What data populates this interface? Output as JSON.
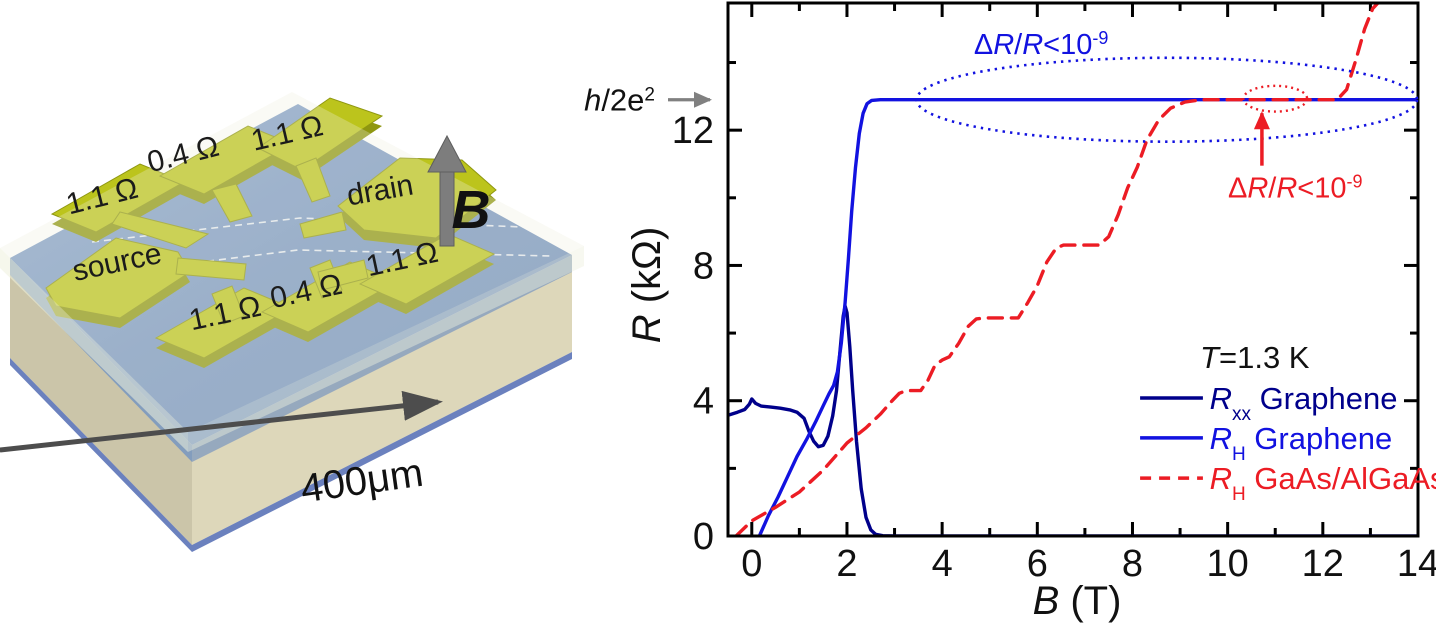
{
  "device": {
    "labels": {
      "contact_top_left": "1.1 Ω",
      "contact_top_mid": "0.4 Ω",
      "contact_top_right": "1.1 Ω",
      "drain": "drain",
      "source": "source",
      "contact_bottom_left": "1.1 Ω",
      "contact_bottom_mid": "0.4 Ω",
      "contact_right": "1.1 Ω",
      "field": "B",
      "scale": "400μm"
    },
    "colors": {
      "contact": "#bcc41c",
      "contact_side": "#8f9710",
      "chip_blue": "#7795c1",
      "substrate_front": "#ddd7ba",
      "substrate_left": "#cbc5a9",
      "glass": "#eef0dd",
      "bottom_line_blue": "#3a57a8",
      "field_arrow_gray": "#7d7d7d",
      "scale_arrow_gray": "#4d4d4d"
    }
  },
  "chart_data": {
    "type": "line",
    "xlabel_rich": [
      [
        "B",
        "i"
      ],
      [
        " (T)",
        ""
      ]
    ],
    "ylabel_rich": [
      [
        "R",
        "i"
      ],
      [
        " (kΩ)",
        ""
      ]
    ],
    "xlim": [
      -0.5,
      14
    ],
    "ylim": [
      0,
      15.76
    ],
    "x_major_ticks": [
      0,
      2,
      4,
      6,
      8,
      10,
      12,
      14
    ],
    "x_minor_ticks": [
      1,
      3,
      5,
      7,
      9,
      11,
      13
    ],
    "y_major_ticks": [
      0,
      4,
      8,
      12
    ],
    "y_minor_ticks": [
      2,
      6,
      10,
      14
    ],
    "axis_color": "#000000",
    "series": [
      {
        "id": "rxx-graphene",
        "legend_rich": [
          [
            "R",
            "i"
          ],
          [
            "xx",
            "sub"
          ],
          [
            " Graphene",
            ""
          ]
        ],
        "color": "#00008b",
        "dash": null,
        "points": [
          [
            -0.5,
            3.57
          ],
          [
            -0.3,
            3.66
          ],
          [
            -0.15,
            3.74
          ],
          [
            -0.05,
            3.9
          ],
          [
            0.0,
            4.05
          ],
          [
            0.08,
            3.92
          ],
          [
            0.2,
            3.84
          ],
          [
            0.4,
            3.81
          ],
          [
            0.6,
            3.78
          ],
          [
            0.8,
            3.73
          ],
          [
            0.95,
            3.66
          ],
          [
            1.1,
            3.48
          ],
          [
            1.2,
            3.1
          ],
          [
            1.3,
            2.8
          ],
          [
            1.4,
            2.64
          ],
          [
            1.5,
            2.68
          ],
          [
            1.6,
            2.95
          ],
          [
            1.7,
            3.55
          ],
          [
            1.78,
            4.3
          ],
          [
            1.85,
            5.4
          ],
          [
            1.92,
            6.5
          ],
          [
            1.96,
            6.8
          ],
          [
            2.0,
            6.6
          ],
          [
            2.06,
            5.6
          ],
          [
            2.12,
            4.3
          ],
          [
            2.2,
            2.8
          ],
          [
            2.3,
            1.4
          ],
          [
            2.4,
            0.55
          ],
          [
            2.5,
            0.18
          ],
          [
            2.6,
            0.05
          ],
          [
            2.75,
            0.01
          ],
          [
            3.0,
            0
          ],
          [
            14,
            0
          ]
        ]
      },
      {
        "id": "rh-graphene",
        "legend_rich": [
          [
            "R",
            "i"
          ],
          [
            "H",
            "sub"
          ],
          [
            " Graphene",
            ""
          ]
        ],
        "color": "#1212e0",
        "dash": null,
        "points": [
          [
            0.16,
            0
          ],
          [
            0.35,
            0.6
          ],
          [
            0.55,
            1.15
          ],
          [
            0.75,
            1.75
          ],
          [
            0.95,
            2.35
          ],
          [
            1.15,
            2.85
          ],
          [
            1.35,
            3.4
          ],
          [
            1.5,
            3.85
          ],
          [
            1.62,
            4.2
          ],
          [
            1.72,
            4.45
          ],
          [
            1.8,
            4.85
          ],
          [
            1.88,
            5.7
          ],
          [
            1.96,
            6.9
          ],
          [
            2.03,
            8.2
          ],
          [
            2.1,
            9.6
          ],
          [
            2.18,
            10.9
          ],
          [
            2.26,
            11.9
          ],
          [
            2.34,
            12.5
          ],
          [
            2.42,
            12.78
          ],
          [
            2.52,
            12.88
          ],
          [
            2.7,
            12.9
          ],
          [
            14,
            12.9
          ]
        ]
      },
      {
        "id": "rh-gaas-algaas",
        "legend_rich": [
          [
            "R",
            "i"
          ],
          [
            "H",
            "sub"
          ],
          [
            " GaAs/AlGaAs",
            ""
          ]
        ],
        "color": "#ec1c24",
        "dash": "14 9",
        "points": [
          [
            -0.33,
            0
          ],
          [
            0.0,
            0.45
          ],
          [
            0.5,
            0.85
          ],
          [
            1.0,
            1.3
          ],
          [
            1.5,
            1.95
          ],
          [
            2.0,
            2.75
          ],
          [
            2.4,
            3.2
          ],
          [
            2.7,
            3.6
          ],
          [
            2.95,
            4.0
          ],
          [
            3.1,
            4.22
          ],
          [
            3.25,
            4.3
          ],
          [
            3.55,
            4.3
          ],
          [
            3.7,
            4.6
          ],
          [
            3.85,
            5.05
          ],
          [
            4.0,
            5.2
          ],
          [
            4.15,
            5.3
          ],
          [
            4.35,
            5.7
          ],
          [
            4.55,
            6.2
          ],
          [
            4.72,
            6.42
          ],
          [
            4.9,
            6.45
          ],
          [
            5.6,
            6.45
          ],
          [
            5.8,
            6.9
          ],
          [
            6.0,
            7.4
          ],
          [
            6.2,
            8.1
          ],
          [
            6.4,
            8.52
          ],
          [
            6.55,
            8.6
          ],
          [
            7.3,
            8.6
          ],
          [
            7.5,
            8.85
          ],
          [
            7.7,
            9.5
          ],
          [
            7.9,
            10.3
          ],
          [
            8.1,
            10.9
          ],
          [
            8.3,
            11.7
          ],
          [
            8.55,
            12.3
          ],
          [
            8.8,
            12.65
          ],
          [
            9.1,
            12.83
          ],
          [
            9.45,
            12.9
          ],
          [
            12.3,
            12.9
          ],
          [
            12.5,
            13.2
          ],
          [
            12.7,
            14.1
          ],
          [
            12.88,
            15.0
          ],
          [
            13.05,
            15.6
          ],
          [
            13.16,
            15.76
          ]
        ]
      }
    ],
    "legend": {
      "line_x": [
        8.16,
        9.48
      ],
      "text_x": 9.62,
      "rows_y": [
        4.08,
        2.9,
        1.71
      ],
      "title_rich": [
        [
          "T",
          "i"
        ],
        [
          "=1.3 K",
          ""
        ]
      ],
      "title_pos": [
        10.57,
        5.29
      ],
      "title_color": "#111111"
    },
    "annotations": {
      "h2e2": {
        "rich": [
          [
            "h",
            "i"
          ],
          [
            "/2e",
            ""
          ],
          [
            "2",
            "sup"
          ]
        ],
        "value_kohm": 12.9,
        "arrow_color": "#808080",
        "text_color": "#111111"
      },
      "blue_ellipse": {
        "cx": 8.72,
        "cy": 12.9,
        "rx": 5.26,
        "ry": 1.24,
        "color": "#1212e0",
        "label_rich": [
          [
            "Δ",
            ""
          ],
          [
            "R",
            "i"
          ],
          [
            "/",
            ""
          ],
          [
            "R",
            "i"
          ],
          [
            "<10",
            ""
          ],
          [
            "-9",
            "sup"
          ]
        ],
        "label_pos": [
          6.08,
          14.55
        ]
      },
      "red_ellipse": {
        "cx": 11.0,
        "cy": 12.93,
        "rx": 0.67,
        "ry": 0.38,
        "color": "#ec1c24",
        "label_rich": [
          [
            "Δ",
            ""
          ],
          [
            "R",
            "i"
          ],
          [
            "/",
            ""
          ],
          [
            "R",
            "i"
          ],
          [
            "<10",
            ""
          ],
          [
            "-9",
            "sup"
          ]
        ],
        "label_pos": [
          11.42,
          10.3
        ],
        "arrow": {
          "x": 10.72,
          "y1": 10.95,
          "y2": 12.5
        }
      }
    }
  }
}
